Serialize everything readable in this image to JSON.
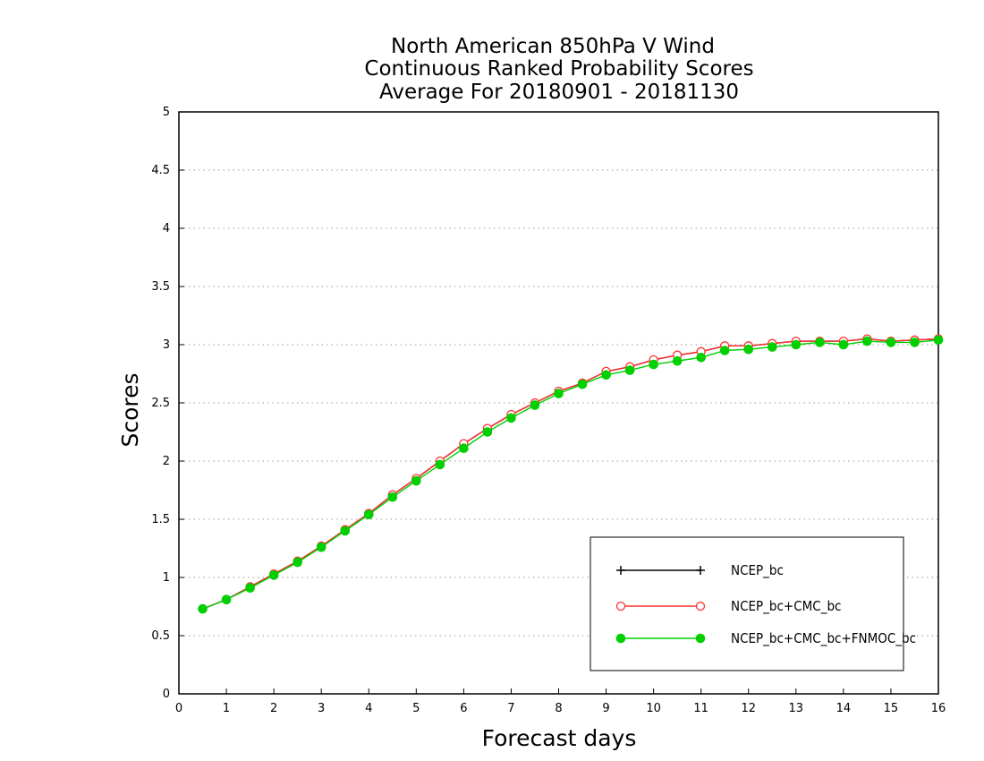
{
  "chart_data": {
    "type": "line",
    "title": [
      "North American 850hPa V Wind",
      "Continuous Ranked Probability Scores",
      "Average For 20180901 - 20181130"
    ],
    "xlabel": "Forecast days",
    "ylabel": "Scores",
    "xlim": [
      0,
      16
    ],
    "ylim": [
      0,
      5
    ],
    "x_ticks": [
      "0",
      "1",
      "2",
      "3",
      "4",
      "5",
      "6",
      "7",
      "8",
      "9",
      "10",
      "11",
      "12",
      "13",
      "14",
      "15",
      "16"
    ],
    "y_ticks": [
      "0",
      "0.5",
      "1",
      "1.5",
      "2",
      "2.5",
      "3",
      "3.5",
      "4",
      "4.5",
      "5"
    ],
    "grid": "horizontal dotted",
    "legend_position": "bottom-right",
    "x": [
      0.5,
      1.0,
      1.5,
      2.0,
      2.5,
      3.0,
      3.5,
      4.0,
      4.5,
      5.0,
      5.5,
      6.0,
      6.5,
      7.0,
      7.5,
      8.0,
      8.5,
      9.0,
      9.5,
      10.0,
      10.5,
      11.0,
      11.5,
      12.0,
      12.5,
      13.0,
      13.5,
      14.0,
      14.5,
      15.0,
      15.5,
      16.0
    ],
    "series": [
      {
        "name": "NCEP_bc",
        "color": "#000000",
        "marker": "plus",
        "values": [
          0.73,
          0.81,
          0.92,
          1.03,
          1.14,
          1.27,
          1.41,
          1.55,
          1.71,
          1.85,
          2.0,
          2.15,
          2.28,
          2.4,
          2.5,
          2.6,
          2.67,
          2.77,
          2.81,
          2.87,
          2.91,
          2.94,
          2.99,
          2.99,
          3.01,
          3.03,
          3.03,
          3.03,
          3.05,
          3.03,
          3.04,
          3.05
        ]
      },
      {
        "name": "NCEP_bc+CMC_bc",
        "color": "#ff3030",
        "marker": "open-circle",
        "values": [
          0.73,
          0.81,
          0.92,
          1.03,
          1.14,
          1.27,
          1.41,
          1.55,
          1.71,
          1.85,
          2.0,
          2.15,
          2.28,
          2.4,
          2.5,
          2.6,
          2.67,
          2.77,
          2.81,
          2.87,
          2.91,
          2.94,
          2.99,
          2.99,
          3.01,
          3.03,
          3.03,
          3.03,
          3.05,
          3.03,
          3.04,
          3.05
        ]
      },
      {
        "name": "NCEP_bc+CMC_bc+FNMOC_bc",
        "color": "#00d000",
        "marker": "filled-circle",
        "values": [
          0.73,
          0.81,
          0.91,
          1.02,
          1.13,
          1.26,
          1.4,
          1.54,
          1.69,
          1.83,
          1.97,
          2.11,
          2.25,
          2.37,
          2.48,
          2.58,
          2.66,
          2.74,
          2.78,
          2.83,
          2.86,
          2.89,
          2.95,
          2.96,
          2.98,
          3.0,
          3.02,
          3.0,
          3.03,
          3.02,
          3.02,
          3.04
        ]
      }
    ]
  }
}
